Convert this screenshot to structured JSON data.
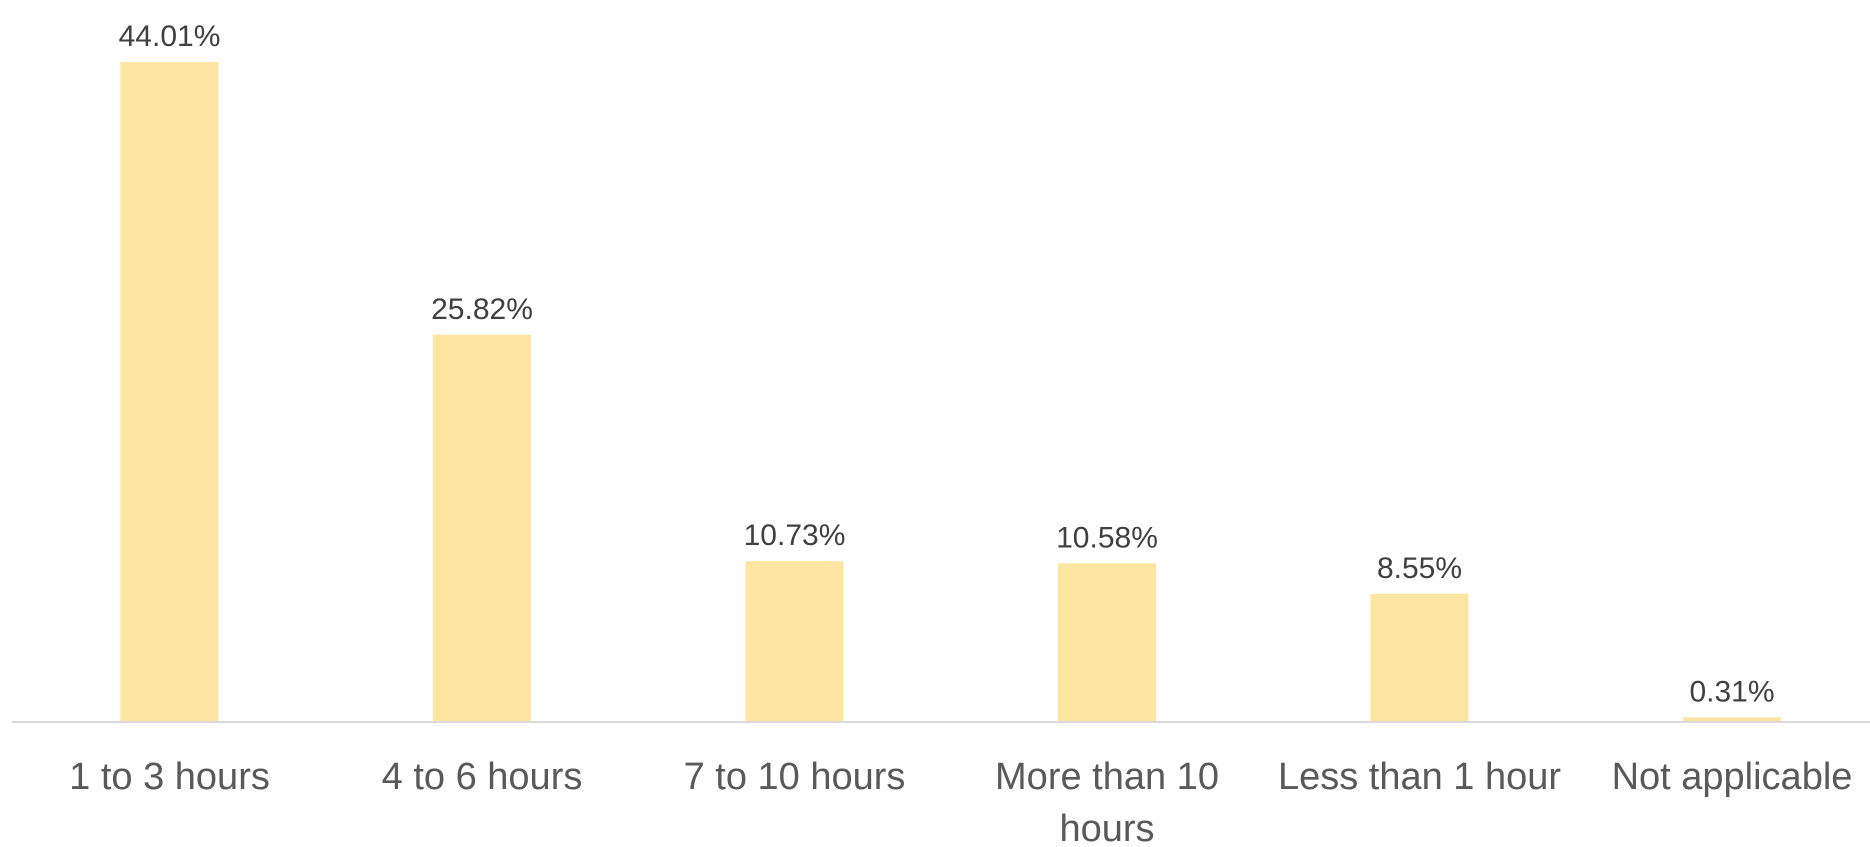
{
  "chart_data": {
    "type": "bar",
    "categories": [
      "1 to 3 hours",
      "4 to 6 hours",
      "7 to 10 hours",
      "More than 10 hours",
      "Less than 1 hour",
      "Not applicable"
    ],
    "category_lines": [
      [
        "1 to 3 hours"
      ],
      [
        "4 to 6 hours"
      ],
      [
        "7 to 10 hours"
      ],
      [
        "More than 10",
        "hours"
      ],
      [
        "Less than 1 hour"
      ],
      [
        "Not applicable"
      ]
    ],
    "values": [
      44.01,
      25.82,
      10.73,
      10.58,
      8.55,
      0.31
    ],
    "value_labels": [
      "44.01%",
      "25.82%",
      "10.73%",
      "10.58%",
      "8.55%",
      "0.31%"
    ],
    "ylim": [
      0,
      44.01
    ],
    "bar_color": "#FEE6A2",
    "axis_color": "#D9D9D9",
    "grid": false,
    "legend": "none"
  }
}
